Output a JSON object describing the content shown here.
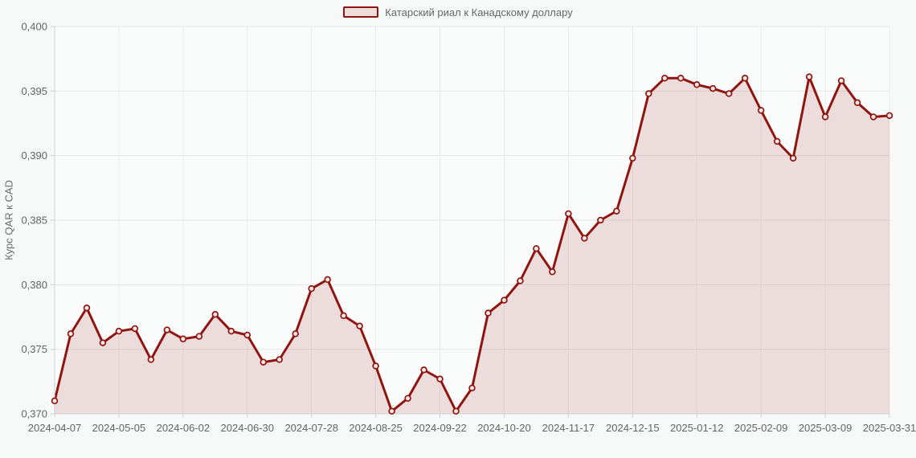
{
  "legend": {
    "label": "Катарский риал к Канадскому доллару"
  },
  "colors": {
    "page_bg": "#f7f8f8",
    "plot_bg": "#fafbfb",
    "series_line": "#8f1510",
    "series_fill": "rgba(143,21,16,0.13)",
    "marker_fill": "#f3e7e5",
    "grid_h": "#e4e6e6",
    "grid_v": "#eaecec",
    "axis": "#cfcfcf",
    "tick_label": "#646464"
  },
  "chart_data": {
    "type": "area",
    "title": "",
    "ylabel": "Курс QAR к CAD",
    "xlabel": "",
    "grid": true,
    "legend_position": "top",
    "marker": "circle",
    "ylim": [
      0.37,
      0.4
    ],
    "y_ticks": [
      0.4,
      0.395,
      0.39,
      0.385,
      0.38,
      0.375,
      0.37
    ],
    "y_tick_labels": [
      "0,400",
      "0,395",
      "0,390",
      "0,385",
      "0,380",
      "0,375",
      "0,370"
    ],
    "x_tick_labels": [
      "2024-04-07",
      "2024-05-05",
      "2024-06-02",
      "2024-06-30",
      "2024-07-28",
      "2024-08-25",
      "2024-09-22",
      "2024-10-20",
      "2024-11-17",
      "2024-12-15",
      "2025-01-12",
      "2025-02-09",
      "2025-03-09",
      "2025-03-31"
    ],
    "series": [
      {
        "name": "Катарский риал к Канадскому доллару",
        "color": "#8f1510",
        "values": [
          0.371,
          0.3762,
          0.3782,
          0.3755,
          0.3764,
          0.3766,
          0.3742,
          0.3765,
          0.3758,
          0.376,
          0.3777,
          0.3764,
          0.3761,
          0.374,
          0.3742,
          0.3762,
          0.3797,
          0.3804,
          0.3776,
          0.3768,
          0.3737,
          0.3702,
          0.3712,
          0.3734,
          0.3727,
          0.3702,
          0.372,
          0.3778,
          0.3788,
          0.3803,
          0.3828,
          0.381,
          0.3855,
          0.3836,
          0.385,
          0.3857,
          0.3898,
          0.3948,
          0.396,
          0.396,
          0.3955,
          0.3952,
          0.3948,
          0.396,
          0.3935,
          0.3911,
          0.3898,
          0.3961,
          0.393,
          0.3958,
          0.3941,
          0.393,
          0.3931
        ]
      }
    ]
  }
}
